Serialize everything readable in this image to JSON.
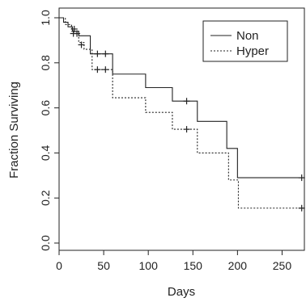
{
  "chart_data": {
    "type": "line",
    "chart_kind": "kaplan-meier step survival curve",
    "xlabel": "Days",
    "ylabel": "Fraction Surviving",
    "xlim": [
      0,
      275
    ],
    "ylim": [
      0,
      1
    ],
    "x_ticks": [
      0,
      50,
      100,
      150,
      200,
      250
    ],
    "x_tick_labels": [
      "0",
      "50",
      "100",
      "150",
      "200",
      "250"
    ],
    "y_ticks": [
      0.0,
      0.2,
      0.4,
      0.6,
      0.8,
      1.0
    ],
    "y_tick_labels": [
      "0.0",
      "0.2",
      "0.4",
      "0.6",
      "0.8",
      "1.0"
    ],
    "grid": false,
    "legend_position": "top-right",
    "series": [
      {
        "name": "Non",
        "line_style": "solid",
        "color": "#222222",
        "steps": [
          [
            0,
            1.0
          ],
          [
            5,
            0.98
          ],
          [
            10,
            0.96
          ],
          [
            15,
            0.94
          ],
          [
            22,
            0.92
          ],
          [
            35,
            0.84
          ],
          [
            60,
            0.75
          ],
          [
            97,
            0.69
          ],
          [
            127,
            0.63
          ],
          [
            155,
            0.54
          ],
          [
            188,
            0.42
          ],
          [
            200,
            0.29
          ],
          [
            275,
            0.29
          ]
        ],
        "censored": [
          [
            17,
            0.95
          ],
          [
            20,
            0.93
          ],
          [
            43,
            0.84
          ],
          [
            52,
            0.84
          ],
          [
            143,
            0.63
          ],
          [
            272,
            0.29
          ]
        ]
      },
      {
        "name": "Hyper",
        "line_style": "dotted",
        "color": "#222222",
        "steps": [
          [
            0,
            1.0
          ],
          [
            7,
            0.97
          ],
          [
            14,
            0.94
          ],
          [
            22,
            0.89
          ],
          [
            28,
            0.86
          ],
          [
            37,
            0.77
          ],
          [
            60,
            0.645
          ],
          [
            97,
            0.58
          ],
          [
            127,
            0.505
          ],
          [
            155,
            0.4
          ],
          [
            190,
            0.28
          ],
          [
            201,
            0.155
          ],
          [
            275,
            0.155
          ]
        ],
        "censored": [
          [
            16,
            0.93
          ],
          [
            25,
            0.88
          ],
          [
            43,
            0.77
          ],
          [
            52,
            0.77
          ],
          [
            143,
            0.505
          ],
          [
            272,
            0.155
          ]
        ]
      }
    ]
  }
}
